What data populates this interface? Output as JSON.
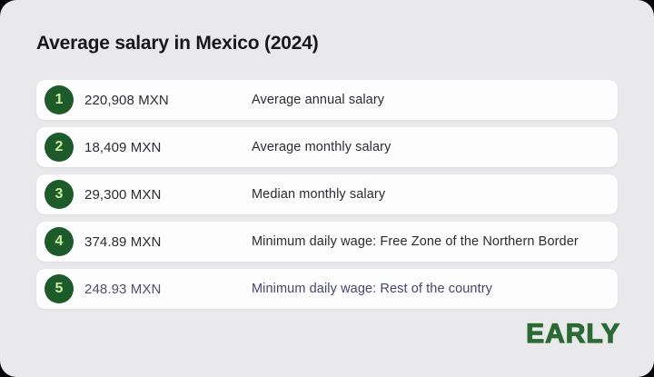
{
  "card": {
    "title": "Average salary in Mexico (2024)",
    "brand": "EARLY"
  },
  "colors": {
    "backdrop": "#000000",
    "card_bg": "#e9e9ec",
    "row_bg": "#fdfdfe",
    "title_text": "#17171c",
    "row_text": "#2b2b33",
    "badge_bg": "#1e5b2b",
    "badge_text": "#c9ec9f",
    "highlight_text": "#46466e",
    "brand_green": "#2c6a35"
  },
  "rows": [
    {
      "rank": "1",
      "value": "220,908 MXN",
      "label": "Average annual salary"
    },
    {
      "rank": "2",
      "value": "18,409 MXN",
      "label": "Average monthly salary"
    },
    {
      "rank": "3",
      "value": "29,300 MXN",
      "label": "Median monthly salary"
    },
    {
      "rank": "4",
      "value": "374.89 MXN",
      "label": "Minimum daily wage: Free Zone of the Northern Border"
    },
    {
      "rank": "5",
      "value": "248.93 MXN",
      "label": "Minimum daily wage: Rest of the country"
    }
  ],
  "chart_data": {
    "type": "table",
    "title": "Average salary in Mexico (2024)",
    "categories": [
      "Average annual salary",
      "Average monthly salary",
      "Median monthly salary",
      "Minimum daily wage: Free Zone of the Northern Border",
      "Minimum daily wage: Rest of the country"
    ],
    "values": [
      220908,
      18409,
      29300,
      374.89,
      248.93
    ],
    "unit": "MXN",
    "highlighted_row_index": 4
  }
}
